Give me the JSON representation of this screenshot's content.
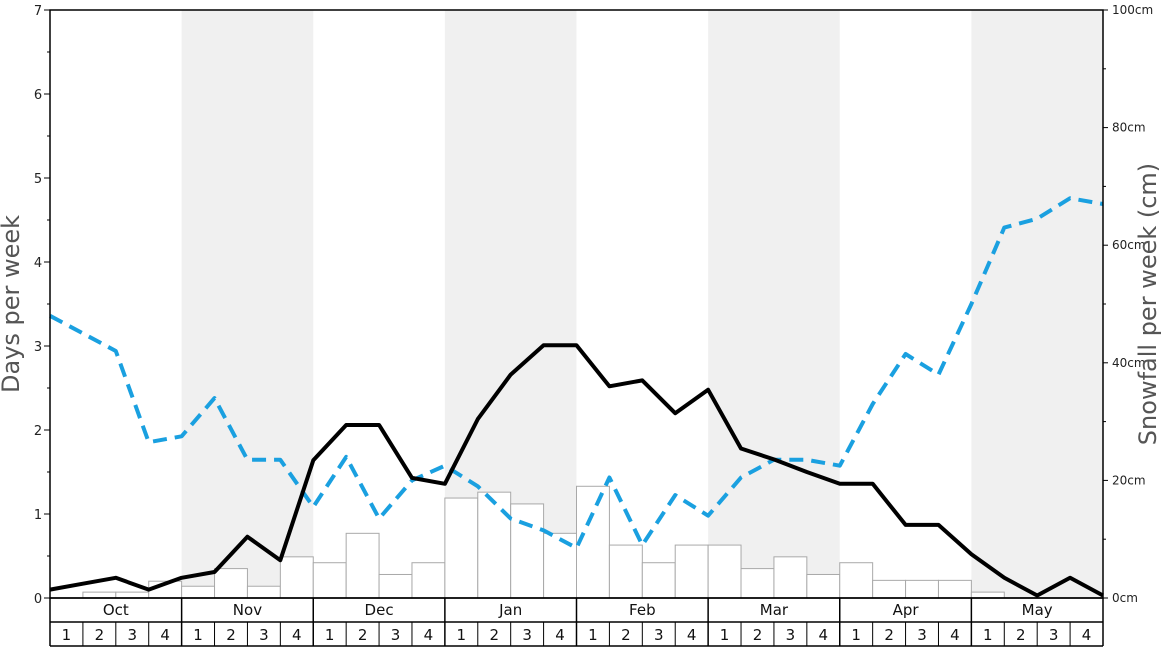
{
  "chart_data": {
    "type": "bar+line",
    "months": [
      "Oct",
      "Nov",
      "Dec",
      "Jan",
      "Feb",
      "Mar",
      "Apr",
      "May"
    ],
    "weeks": [
      "1",
      "2",
      "3",
      "4"
    ],
    "left_axis": {
      "label": "Days per week",
      "range": [
        0,
        7
      ],
      "ticks": [
        "0",
        "1",
        "2",
        "3",
        "4",
        "5",
        "6",
        "7"
      ]
    },
    "right_axis": {
      "label": "Snowfall per week (cm)",
      "range": [
        0,
        100
      ],
      "ticks": [
        "0cm",
        "20cm",
        "40cm",
        "60cm",
        "80cm",
        "100cm"
      ]
    },
    "series": [
      {
        "kind": "bar",
        "axis": "left",
        "color": "#ffffff",
        "stroke": "#a9a9a9",
        "values": [
          0,
          0.07,
          0.07,
          0.2,
          0.14,
          0.35,
          0.14,
          0.49,
          0.42,
          0.77,
          0.28,
          0.42,
          1.19,
          1.26,
          1.12,
          0.77,
          1.33,
          0.63,
          0.42,
          0.63,
          0.63,
          0.35,
          0.49,
          0.28,
          0.42,
          0.21,
          0.21,
          0.21,
          0.07,
          0,
          0,
          0
        ]
      },
      {
        "kind": "line",
        "axis": "left",
        "color": "#000000",
        "style": "solid",
        "values": [
          0.1,
          0.17,
          0.24,
          0.1,
          0.24,
          0.31,
          0.73,
          0.45,
          1.64,
          2.06,
          2.06,
          1.43,
          1.36,
          2.13,
          2.66,
          3.01,
          3.01,
          2.52,
          2.59,
          2.2,
          2.48,
          1.78,
          1.65,
          1.5,
          1.36,
          1.36,
          0.87,
          0.87,
          0.52,
          0.24,
          0.03,
          0.24,
          0.03
        ]
      },
      {
        "kind": "line",
        "axis": "right",
        "color": "#1aa0e0",
        "style": "dashed",
        "values": [
          48,
          45,
          42,
          26.5,
          27.5,
          34,
          23.5,
          23.5,
          15.5,
          24,
          13.5,
          20,
          22.5,
          19,
          13.5,
          11.5,
          8.5,
          20.5,
          9,
          17.5,
          14,
          20.5,
          23.5,
          23.5,
          22.5,
          33,
          41.5,
          38,
          50,
          63,
          64.5,
          68,
          67
        ]
      }
    ],
    "shading": "alternate months grey",
    "colors": {
      "shade": "#f0f0f0",
      "bar_stroke": "#a9a9a9",
      "days_line": "#000000",
      "snow_line": "#1aa0e0",
      "axis": "#000000"
    }
  }
}
